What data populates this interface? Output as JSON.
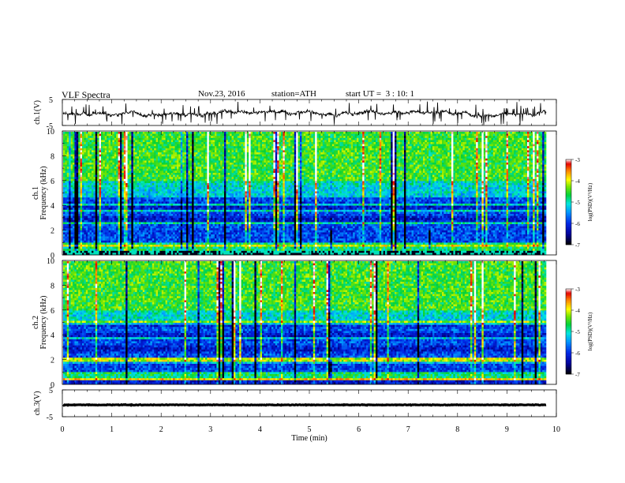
{
  "header": {
    "title": "VLF Spectra",
    "date": "Nov.23, 2016",
    "station": "station=ATH",
    "start": "start UT =  3 : 10: 1"
  },
  "chart_data": [
    {
      "type": "line",
      "ylabel": "ch.1(V)",
      "yticks": [
        "5",
        "-5"
      ],
      "ylim": [
        -5,
        5
      ],
      "xlim": [
        0,
        10
      ],
      "data_end_min": 9.8,
      "grid": false
    },
    {
      "type": "heatmap",
      "ylabel": "ch.1\nFrequency (kHz)",
      "ylabel_lines": [
        "ch.1",
        "Frequency (kHz)"
      ],
      "yticks": [
        "10",
        "8",
        "6",
        "4",
        "2",
        "0"
      ],
      "ylim": [
        0,
        10
      ],
      "xlim": [
        0,
        10
      ],
      "colorbar": {
        "label": "log(PSD)(V²/Hz)",
        "ticks": [
          "-3",
          "-4",
          "-5",
          "-6",
          "-7"
        ],
        "range": [
          -7,
          -3
        ],
        "colors": [
          "#000000",
          "#0000cc",
          "#0090ff",
          "#00e0e0",
          "#00c800",
          "#ffff00",
          "#ff9600",
          "#e60000",
          "#ffffff"
        ]
      },
      "grid": false
    },
    {
      "type": "heatmap",
      "ylabel": "ch.2\nFrequency (kHz)",
      "ylabel_lines": [
        "ch.2",
        "Frequency (kHz)"
      ],
      "yticks": [
        "10",
        "8",
        "6",
        "4",
        "2",
        "0"
      ],
      "ylim": [
        0,
        10
      ],
      "xlim": [
        0,
        10
      ],
      "colorbar": {
        "label": "log(PSD)(V²/Hz)",
        "ticks": [
          "-3",
          "-4",
          "-5",
          "-6",
          "-7"
        ],
        "range": [
          -7,
          -3
        ]
      },
      "grid": false
    },
    {
      "type": "line",
      "ylabel": "ch.3(V)",
      "yticks": [
        "5",
        "-5"
      ],
      "ylim": [
        -5,
        5
      ],
      "xlim": [
        0,
        10
      ],
      "level": -0.6,
      "grid": false
    }
  ],
  "xaxis": {
    "label": "Time (min)",
    "ticks": [
      "0",
      "1",
      "2",
      "3",
      "4",
      "5",
      "6",
      "7",
      "8",
      "9",
      "10"
    ]
  }
}
